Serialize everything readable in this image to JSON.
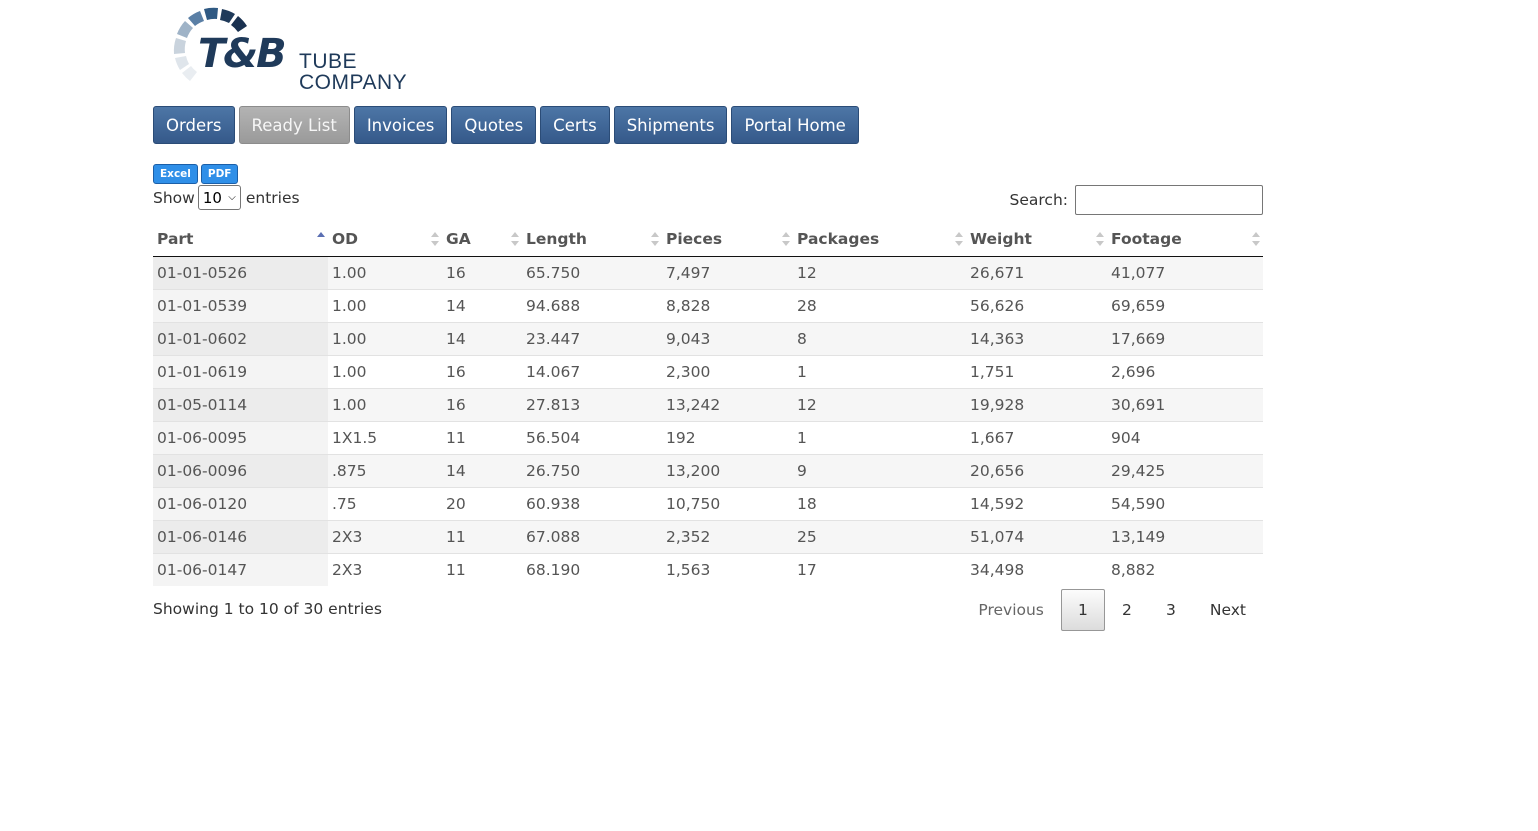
{
  "logo": {
    "brand": "T&B",
    "sub": "TUBE COMPANY"
  },
  "nav": [
    {
      "label": "Orders",
      "active": false
    },
    {
      "label": "Ready List",
      "active": true
    },
    {
      "label": "Invoices",
      "active": false
    },
    {
      "label": "Quotes",
      "active": false
    },
    {
      "label": "Certs",
      "active": false
    },
    {
      "label": "Shipments",
      "active": false
    },
    {
      "label": "Portal Home",
      "active": false
    }
  ],
  "exports": {
    "excel": "Excel",
    "pdf": "PDF"
  },
  "length": {
    "prefix": "Show",
    "value": "10",
    "suffix": "entries"
  },
  "search": {
    "label": "Search:",
    "value": ""
  },
  "table": {
    "columns": [
      "Part",
      "OD",
      "GA",
      "Length",
      "Pieces",
      "Packages",
      "Weight",
      "Footage"
    ],
    "sorted_column": "Part",
    "sort_direction": "asc",
    "rows": [
      [
        "01-01-0526",
        "1.00",
        "16",
        "65.750",
        "7,497",
        "12",
        "26,671",
        "41,077"
      ],
      [
        "01-01-0539",
        "1.00",
        "14",
        "94.688",
        "8,828",
        "28",
        "56,626",
        "69,659"
      ],
      [
        "01-01-0602",
        "1.00",
        "14",
        "23.447",
        "9,043",
        "8",
        "14,363",
        "17,669"
      ],
      [
        "01-01-0619",
        "1.00",
        "16",
        "14.067",
        "2,300",
        "1",
        "1,751",
        "2,696"
      ],
      [
        "01-05-0114",
        "1.00",
        "16",
        "27.813",
        "13,242",
        "12",
        "19,928",
        "30,691"
      ],
      [
        "01-06-0095",
        "1X1.5",
        "11",
        "56.504",
        "192",
        "1",
        "1,667",
        "904"
      ],
      [
        "01-06-0096",
        ".875",
        "14",
        "26.750",
        "13,200",
        "9",
        "20,656",
        "29,425"
      ],
      [
        "01-06-0120",
        ".75",
        "20",
        "60.938",
        "10,750",
        "18",
        "14,592",
        "54,590"
      ],
      [
        "01-06-0146",
        "2X3",
        "11",
        "67.088",
        "2,352",
        "25",
        "51,074",
        "13,149"
      ],
      [
        "01-06-0147",
        "2X3",
        "11",
        "68.190",
        "1,563",
        "17",
        "34,498",
        "8,882"
      ]
    ]
  },
  "info": "Showing 1 to 10 of 30 entries",
  "paging": {
    "previous": "Previous",
    "pages": [
      "1",
      "2",
      "3"
    ],
    "current": "1",
    "next": "Next"
  },
  "colors": {
    "nav_blue": "#3f6698",
    "nav_active": "#a6a6a6",
    "export_blue": "#2f8fe8",
    "logo_navy": "#1f3a5a"
  }
}
